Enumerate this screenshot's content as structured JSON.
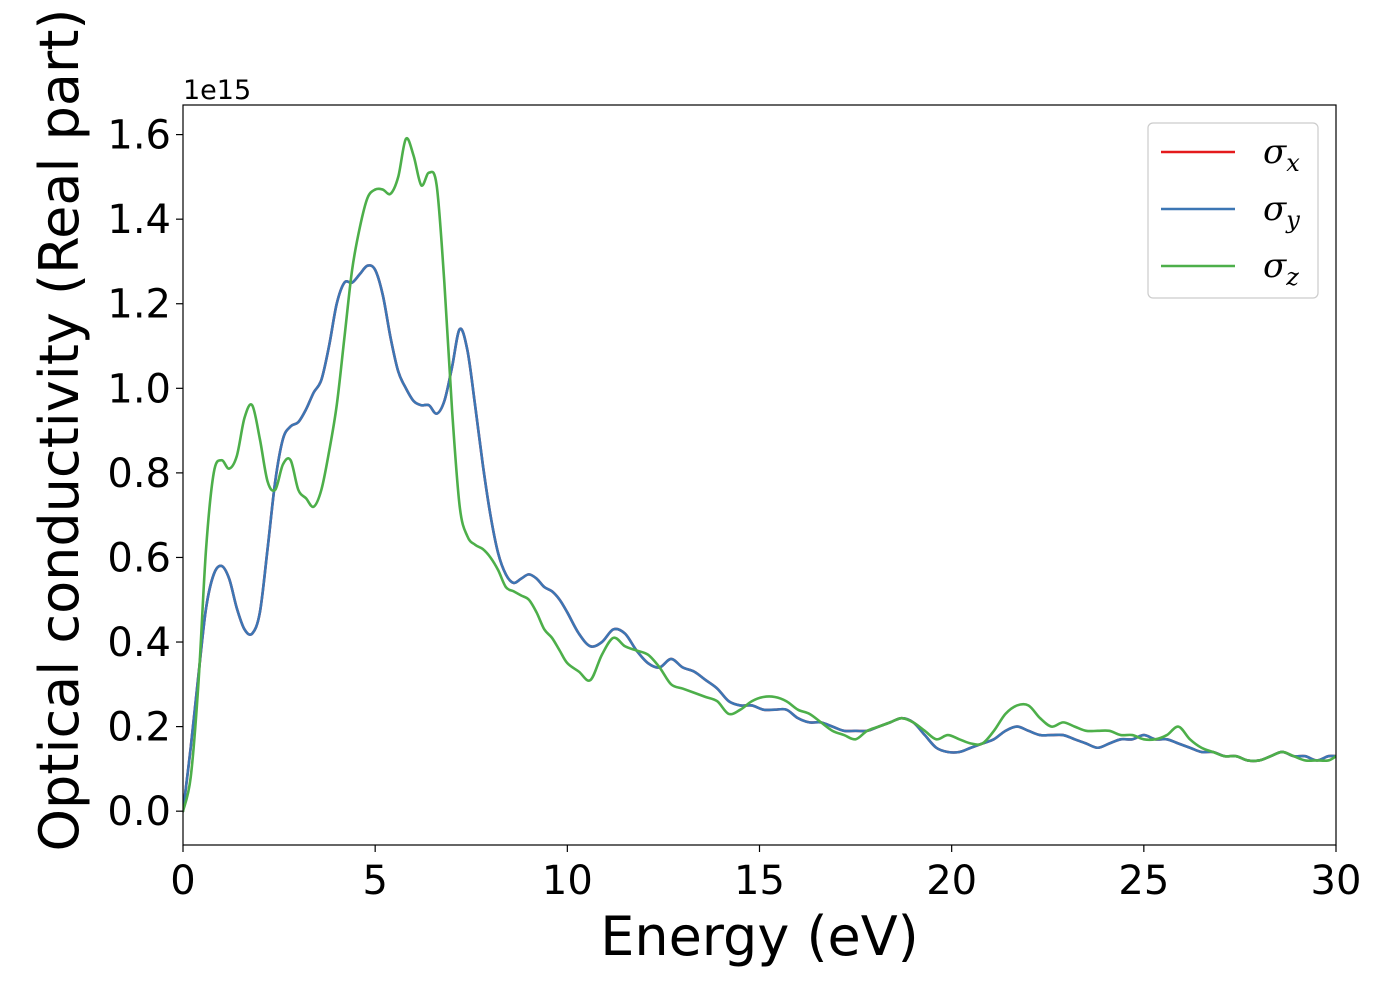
{
  "chart_data": {
    "type": "line",
    "xlabel": "Energy (eV)",
    "ylabel": "Optical conductivity (Real part)",
    "y_offset_label": "1e15",
    "xlim": [
      0,
      30
    ],
    "ylim": [
      -0.08,
      1.67
    ],
    "x_ticks": [
      0,
      5,
      10,
      15,
      20,
      25,
      30
    ],
    "y_ticks": [
      0.0,
      0.2,
      0.4,
      0.6,
      0.8,
      1.0,
      1.2,
      1.4,
      1.6
    ],
    "x_tick_labels": [
      "0",
      "5",
      "10",
      "15",
      "20",
      "25",
      "30"
    ],
    "y_tick_labels": [
      "0.0",
      "0.2",
      "0.4",
      "0.6",
      "0.8",
      "1.0",
      "1.2",
      "1.4",
      "1.6"
    ],
    "grid": false,
    "legend_position": "top-right",
    "series": [
      {
        "name": "σx",
        "symbol": "σ",
        "subscript": "x",
        "color": "#e41a1c",
        "x": [
          0,
          0.2,
          0.4,
          0.6,
          0.8,
          1.0,
          1.2,
          1.4,
          1.6,
          1.8,
          2.0,
          2.2,
          2.4,
          2.6,
          2.8,
          3.0,
          3.2,
          3.4,
          3.6,
          3.8,
          4.0,
          4.2,
          4.4,
          4.6,
          4.8,
          5.0,
          5.2,
          5.4,
          5.6,
          5.8,
          6.0,
          6.2,
          6.4,
          6.6,
          6.8,
          7.0,
          7.2,
          7.4,
          7.6,
          7.8,
          8.0,
          8.2,
          8.4,
          8.6,
          8.8,
          9.0,
          9.2,
          9.4,
          9.6,
          9.8,
          10.0,
          10.3,
          10.6,
          10.9,
          11.2,
          11.5,
          11.8,
          12.1,
          12.4,
          12.7,
          13.0,
          13.3,
          13.6,
          13.9,
          14.2,
          14.5,
          14.8,
          15.1,
          15.4,
          15.7,
          16.0,
          16.3,
          16.6,
          16.9,
          17.2,
          17.5,
          17.8,
          18.1,
          18.4,
          18.7,
          19.0,
          19.3,
          19.6,
          19.9,
          20.2,
          20.5,
          20.8,
          21.1,
          21.4,
          21.7,
          22.0,
          22.3,
          22.6,
          22.9,
          23.2,
          23.5,
          23.8,
          24.1,
          24.4,
          24.7,
          25.0,
          25.3,
          25.6,
          25.9,
          26.2,
          26.5,
          26.8,
          27.1,
          27.4,
          27.7,
          28.0,
          28.3,
          28.6,
          28.9,
          29.2,
          29.5,
          29.8,
          30.0
        ],
        "y": [
          0,
          0.15,
          0.32,
          0.48,
          0.56,
          0.58,
          0.55,
          0.48,
          0.43,
          0.42,
          0.47,
          0.62,
          0.78,
          0.88,
          0.91,
          0.92,
          0.95,
          0.99,
          1.02,
          1.1,
          1.2,
          1.25,
          1.25,
          1.27,
          1.29,
          1.28,
          1.22,
          1.12,
          1.04,
          1.0,
          0.97,
          0.96,
          0.96,
          0.94,
          0.97,
          1.05,
          1.14,
          1.09,
          0.96,
          0.82,
          0.7,
          0.61,
          0.56,
          0.54,
          0.55,
          0.56,
          0.55,
          0.53,
          0.52,
          0.5,
          0.47,
          0.42,
          0.39,
          0.4,
          0.43,
          0.42,
          0.38,
          0.35,
          0.34,
          0.36,
          0.34,
          0.33,
          0.31,
          0.29,
          0.26,
          0.25,
          0.25,
          0.24,
          0.24,
          0.24,
          0.22,
          0.21,
          0.21,
          0.2,
          0.19,
          0.19,
          0.19,
          0.2,
          0.21,
          0.22,
          0.21,
          0.18,
          0.15,
          0.14,
          0.14,
          0.15,
          0.16,
          0.17,
          0.19,
          0.2,
          0.19,
          0.18,
          0.18,
          0.18,
          0.17,
          0.16,
          0.15,
          0.16,
          0.17,
          0.17,
          0.18,
          0.17,
          0.17,
          0.16,
          0.15,
          0.14,
          0.14,
          0.13,
          0.13,
          0.12,
          0.12,
          0.13,
          0.14,
          0.13,
          0.13,
          0.12,
          0.13,
          0.13
        ]
      },
      {
        "name": "σy",
        "symbol": "σ",
        "subscript": "y",
        "color": "#3c76b4",
        "x": [
          0,
          0.2,
          0.4,
          0.6,
          0.8,
          1.0,
          1.2,
          1.4,
          1.6,
          1.8,
          2.0,
          2.2,
          2.4,
          2.6,
          2.8,
          3.0,
          3.2,
          3.4,
          3.6,
          3.8,
          4.0,
          4.2,
          4.4,
          4.6,
          4.8,
          5.0,
          5.2,
          5.4,
          5.6,
          5.8,
          6.0,
          6.2,
          6.4,
          6.6,
          6.8,
          7.0,
          7.2,
          7.4,
          7.6,
          7.8,
          8.0,
          8.2,
          8.4,
          8.6,
          8.8,
          9.0,
          9.2,
          9.4,
          9.6,
          9.8,
          10.0,
          10.3,
          10.6,
          10.9,
          11.2,
          11.5,
          11.8,
          12.1,
          12.4,
          12.7,
          13.0,
          13.3,
          13.6,
          13.9,
          14.2,
          14.5,
          14.8,
          15.1,
          15.4,
          15.7,
          16.0,
          16.3,
          16.6,
          16.9,
          17.2,
          17.5,
          17.8,
          18.1,
          18.4,
          18.7,
          19.0,
          19.3,
          19.6,
          19.9,
          20.2,
          20.5,
          20.8,
          21.1,
          21.4,
          21.7,
          22.0,
          22.3,
          22.6,
          22.9,
          23.2,
          23.5,
          23.8,
          24.1,
          24.4,
          24.7,
          25.0,
          25.3,
          25.6,
          25.9,
          26.2,
          26.5,
          26.8,
          27.1,
          27.4,
          27.7,
          28.0,
          28.3,
          28.6,
          28.9,
          29.2,
          29.5,
          29.8,
          30.0
        ],
        "y": [
          0,
          0.15,
          0.32,
          0.48,
          0.56,
          0.58,
          0.55,
          0.48,
          0.43,
          0.42,
          0.47,
          0.62,
          0.78,
          0.88,
          0.91,
          0.92,
          0.95,
          0.99,
          1.02,
          1.1,
          1.2,
          1.25,
          1.25,
          1.27,
          1.29,
          1.28,
          1.22,
          1.12,
          1.04,
          1.0,
          0.97,
          0.96,
          0.96,
          0.94,
          0.97,
          1.05,
          1.14,
          1.09,
          0.96,
          0.82,
          0.7,
          0.61,
          0.56,
          0.54,
          0.55,
          0.56,
          0.55,
          0.53,
          0.52,
          0.5,
          0.47,
          0.42,
          0.39,
          0.4,
          0.43,
          0.42,
          0.38,
          0.35,
          0.34,
          0.36,
          0.34,
          0.33,
          0.31,
          0.29,
          0.26,
          0.25,
          0.25,
          0.24,
          0.24,
          0.24,
          0.22,
          0.21,
          0.21,
          0.2,
          0.19,
          0.19,
          0.19,
          0.2,
          0.21,
          0.22,
          0.21,
          0.18,
          0.15,
          0.14,
          0.14,
          0.15,
          0.16,
          0.17,
          0.19,
          0.2,
          0.19,
          0.18,
          0.18,
          0.18,
          0.17,
          0.16,
          0.15,
          0.16,
          0.17,
          0.17,
          0.18,
          0.17,
          0.17,
          0.16,
          0.15,
          0.14,
          0.14,
          0.13,
          0.13,
          0.12,
          0.12,
          0.13,
          0.14,
          0.13,
          0.13,
          0.12,
          0.13,
          0.13
        ]
      },
      {
        "name": "σz",
        "symbol": "σ",
        "subscript": "z",
        "color": "#4daf4a",
        "x": [
          0,
          0.2,
          0.4,
          0.6,
          0.8,
          1.0,
          1.2,
          1.4,
          1.6,
          1.8,
          2.0,
          2.2,
          2.4,
          2.6,
          2.8,
          3.0,
          3.2,
          3.4,
          3.6,
          3.8,
          4.0,
          4.2,
          4.4,
          4.6,
          4.8,
          5.0,
          5.2,
          5.4,
          5.6,
          5.8,
          6.0,
          6.2,
          6.4,
          6.6,
          6.8,
          7.0,
          7.2,
          7.4,
          7.6,
          7.8,
          8.0,
          8.2,
          8.4,
          8.6,
          8.8,
          9.0,
          9.2,
          9.4,
          9.6,
          9.8,
          10.0,
          10.3,
          10.6,
          10.9,
          11.2,
          11.5,
          11.8,
          12.1,
          12.4,
          12.7,
          13.0,
          13.3,
          13.6,
          13.9,
          14.2,
          14.5,
          14.8,
          15.1,
          15.4,
          15.7,
          16.0,
          16.3,
          16.6,
          16.9,
          17.2,
          17.5,
          17.8,
          18.1,
          18.4,
          18.7,
          19.0,
          19.3,
          19.6,
          19.9,
          20.2,
          20.5,
          20.8,
          21.1,
          21.4,
          21.7,
          22.0,
          22.3,
          22.6,
          22.9,
          23.2,
          23.5,
          23.8,
          24.1,
          24.4,
          24.7,
          25.0,
          25.3,
          25.6,
          25.9,
          26.2,
          26.5,
          26.8,
          27.1,
          27.4,
          27.7,
          28.0,
          28.3,
          28.6,
          28.9,
          29.2,
          29.5,
          29.8,
          30.0
        ],
        "y": [
          0,
          0.08,
          0.3,
          0.62,
          0.8,
          0.83,
          0.81,
          0.84,
          0.93,
          0.96,
          0.88,
          0.78,
          0.76,
          0.82,
          0.83,
          0.76,
          0.74,
          0.72,
          0.76,
          0.85,
          0.96,
          1.12,
          1.28,
          1.38,
          1.45,
          1.47,
          1.47,
          1.46,
          1.5,
          1.59,
          1.55,
          1.48,
          1.51,
          1.48,
          1.25,
          0.95,
          0.72,
          0.65,
          0.63,
          0.62,
          0.6,
          0.57,
          0.53,
          0.52,
          0.51,
          0.5,
          0.47,
          0.43,
          0.41,
          0.38,
          0.35,
          0.33,
          0.31,
          0.37,
          0.41,
          0.39,
          0.38,
          0.37,
          0.34,
          0.3,
          0.29,
          0.28,
          0.27,
          0.26,
          0.23,
          0.24,
          0.26,
          0.27,
          0.27,
          0.26,
          0.24,
          0.23,
          0.21,
          0.19,
          0.18,
          0.17,
          0.19,
          0.2,
          0.21,
          0.22,
          0.21,
          0.19,
          0.17,
          0.18,
          0.17,
          0.16,
          0.16,
          0.19,
          0.23,
          0.25,
          0.25,
          0.22,
          0.2,
          0.21,
          0.2,
          0.19,
          0.19,
          0.19,
          0.18,
          0.18,
          0.17,
          0.17,
          0.18,
          0.2,
          0.17,
          0.15,
          0.14,
          0.13,
          0.13,
          0.12,
          0.12,
          0.13,
          0.14,
          0.13,
          0.12,
          0.12,
          0.12,
          0.13
        ]
      }
    ]
  }
}
